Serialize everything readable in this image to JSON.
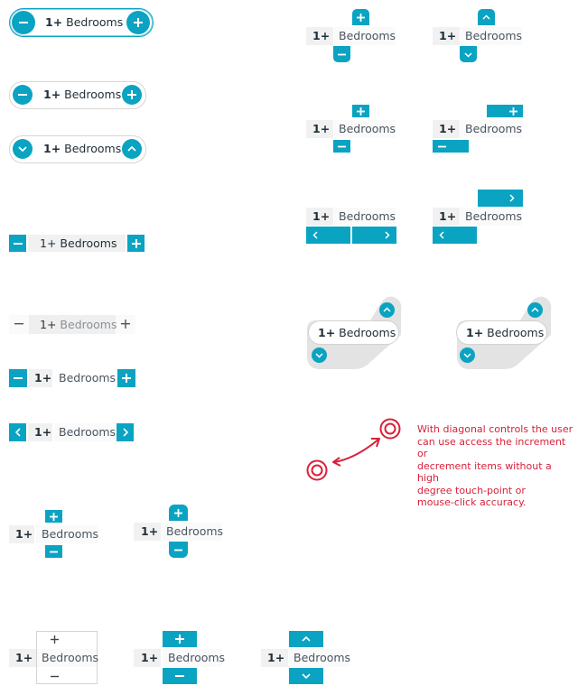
{
  "stepper": {
    "count": "1+",
    "label": "Bedrooms"
  },
  "colors": {
    "accent": "#0aa3c2",
    "annotation": "#d9203a",
    "field": "#f1f1f1"
  },
  "icons": [
    "minus-icon",
    "plus-icon",
    "chevron-down-icon",
    "chevron-up-icon",
    "chevron-left-icon",
    "chevron-right-icon",
    "target-icon",
    "curved-double-arrow-icon"
  ],
  "annotation": {
    "lines": [
      "With diagonal controls the user",
      "can use access the increment or",
      "decrement items without a high",
      "degree touch-point or",
      "mouse-click accuracy."
    ]
  }
}
